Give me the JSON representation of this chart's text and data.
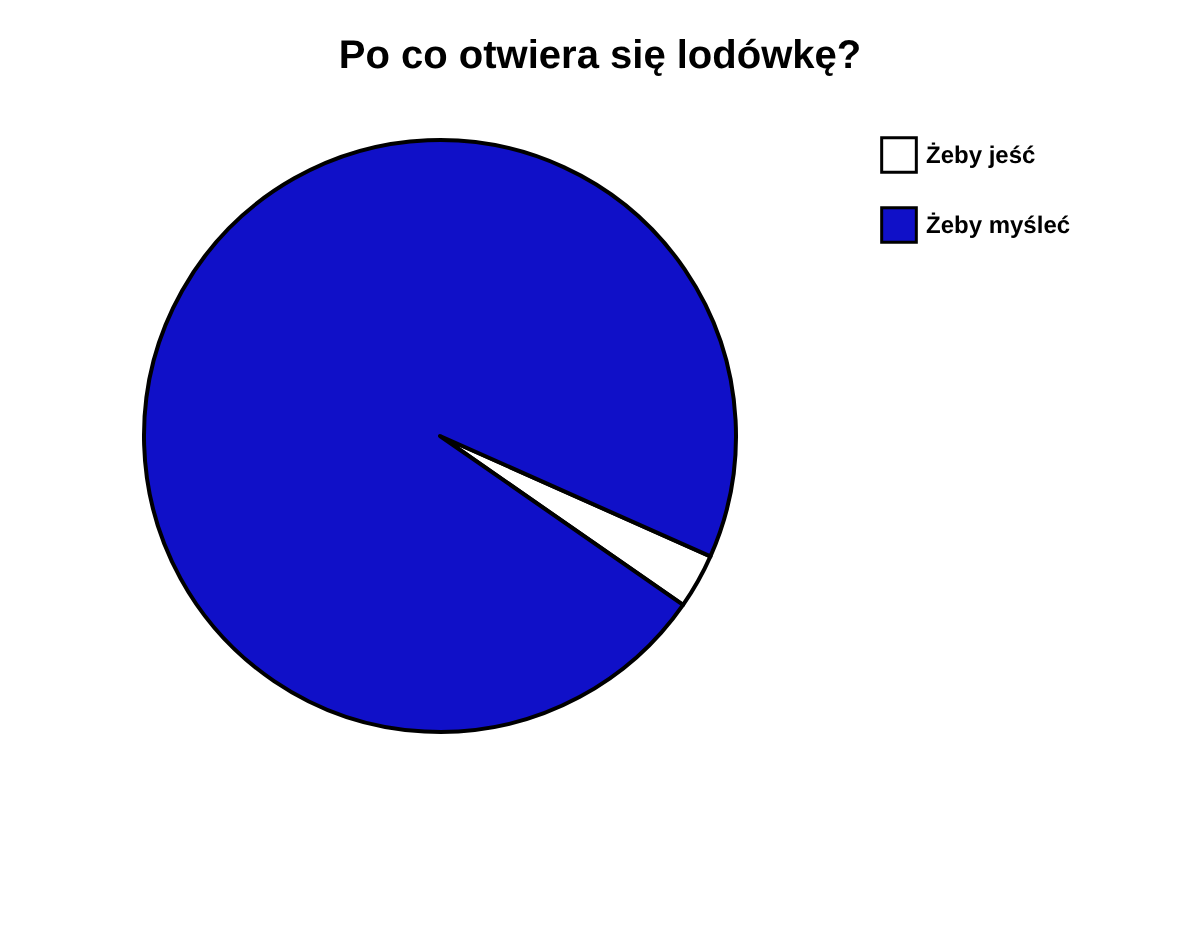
{
  "chart_data": {
    "type": "pie",
    "title": "Po co otwiera się lodówkę?",
    "categories": [
      "Żeby jeść",
      "Żeby myśleć"
    ],
    "values": [
      3,
      97
    ],
    "colors": [
      "#ffffff",
      "#1010c8"
    ],
    "legend": "right"
  }
}
